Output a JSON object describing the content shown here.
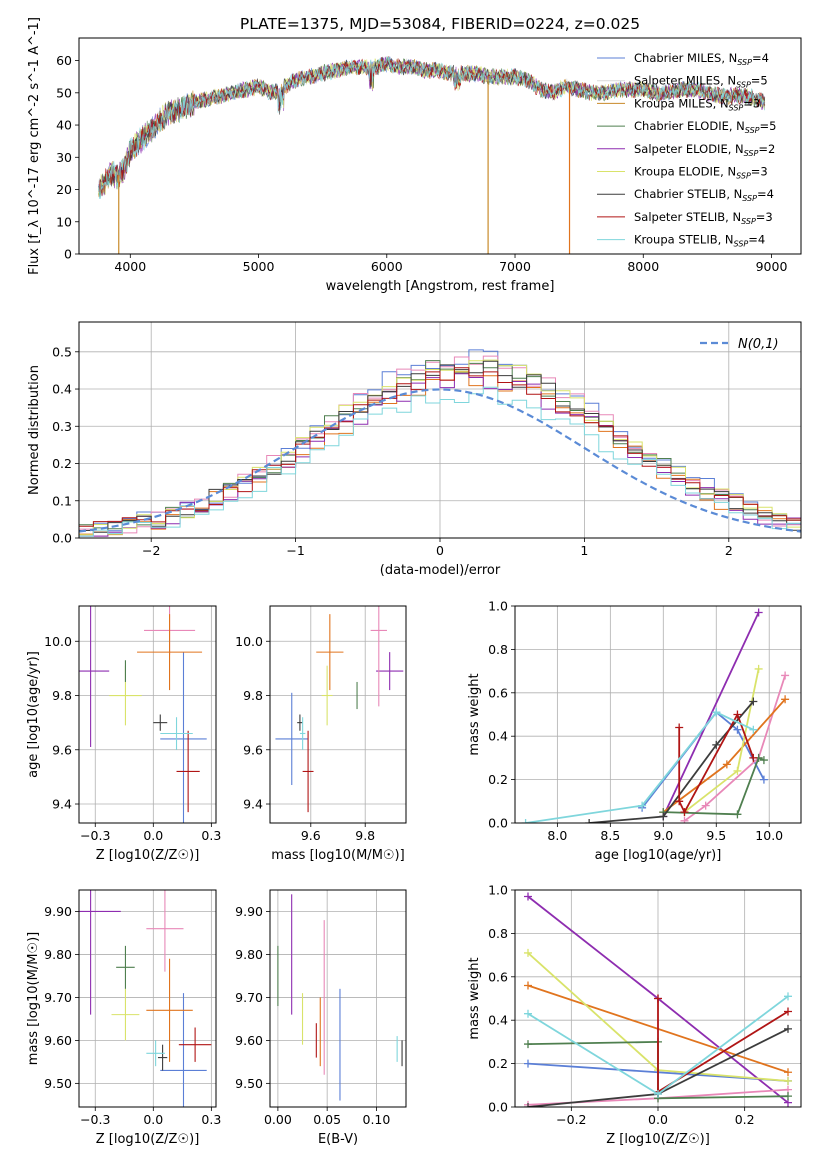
{
  "title": "PLATE=1375, MJD=53084, FIBERID=0224, z=0.025",
  "colors": {
    "chab_miles": "#5b7fd6",
    "salp_miles": "#d9d9d9",
    "krou_miles": "#c88a2a",
    "chab_elodie": "#4f7f4f",
    "salp_elodie": "#8e2db0",
    "krou_elodie": "#d9e36a",
    "chab_stelib": "#3c3c3c",
    "salp_stelib": "#b01515",
    "krou_stelib": "#7fd6dc",
    "orange": "#e0741e",
    "pink": "#e888b8",
    "gaussian": "#5b8bd6"
  },
  "chart_data": [
    {
      "id": "spectrum",
      "type": "line",
      "xlabel": "wavelength [Angstrom, rest frame]",
      "ylabel": "Flux [f_λ 10^-17 erg cm^-2 s^-1 A^-1]",
      "xlim": [
        3600,
        9230
      ],
      "ylim": [
        0,
        67
      ],
      "xticks": [
        4000,
        5000,
        6000,
        7000,
        8000,
        9000
      ],
      "yticks": [
        0,
        10,
        20,
        30,
        40,
        50,
        60
      ],
      "continuum": {
        "x": [
          3750,
          3800,
          3850,
          3900,
          3950,
          4000,
          4100,
          4200,
          4300,
          4400,
          4500,
          4600,
          4700,
          4800,
          4900,
          5000,
          5100,
          5200,
          5300,
          5400,
          5500,
          5600,
          5700,
          5800,
          5900,
          6000,
          6100,
          6200,
          6300,
          6400,
          6500,
          6600,
          6700,
          6800,
          6900,
          7000,
          7100,
          7200,
          7300,
          7400,
          7500,
          7600,
          7700,
          7800,
          7900,
          8000,
          8100,
          8200,
          8300,
          8400,
          8500,
          8600,
          8700,
          8800,
          8900,
          8950
        ],
        "y": [
          20,
          22,
          25,
          24,
          26,
          32,
          36,
          40,
          44,
          45,
          47,
          48,
          49,
          50,
          51,
          52,
          50,
          52,
          54,
          55,
          56,
          57,
          58,
          58,
          58,
          59,
          58,
          58,
          57,
          57,
          56,
          56,
          56,
          55,
          55,
          55,
          54,
          51,
          50,
          52,
          51,
          50,
          50,
          51,
          51,
          51,
          50,
          50,
          51,
          51,
          50,
          49,
          49,
          49,
          48,
          47
        ]
      },
      "legend": [
        {
          "label": "Chabrier MILES, N",
          "sub": "SSP",
          "val": "=4",
          "color": "#5b7fd6"
        },
        {
          "label": "Salpeter MILES, N",
          "sub": "SSP",
          "val": "=5",
          "color": "#d9d9d9"
        },
        {
          "label": "Kroupa MILES, N",
          "sub": "SSP",
          "val": "=3",
          "color": "#c88a2a"
        },
        {
          "label": "Chabrier ELODIE, N",
          "sub": "SSP",
          "val": "=5",
          "color": "#4f7f4f"
        },
        {
          "label": "Salpeter ELODIE, N",
          "sub": "SSP",
          "val": "=2",
          "color": "#8e2db0"
        },
        {
          "label": "Kroupa ELODIE, N",
          "sub": "SSP",
          "val": "=3",
          "color": "#d9e36a"
        },
        {
          "label": "Chabrier STELIB, N",
          "sub": "SSP",
          "val": "=4",
          "color": "#3c3c3c"
        },
        {
          "label": "Salpeter STELIB, N",
          "sub": "SSP",
          "val": "=3",
          "color": "#b01515"
        },
        {
          "label": "Kroupa STELIB, N",
          "sub": "SSP",
          "val": "=4",
          "color": "#7fd6dc"
        }
      ]
    },
    {
      "id": "residuals",
      "type": "line",
      "xlabel": "(data-model)/error",
      "ylabel": "Normed distribution",
      "xlim": [
        -2.5,
        2.5
      ],
      "ylim": [
        0,
        0.58
      ],
      "xticks": [
        -2,
        -1,
        0,
        1,
        2
      ],
      "yticks": [
        0.0,
        0.1,
        0.2,
        0.3,
        0.4,
        0.5
      ],
      "legend": "N(0,1)",
      "bin_width": 0.1,
      "peak_offset": 0.2
    },
    {
      "id": "age_vs_Z",
      "type": "scatter",
      "xlabel": "Z [log10(Z/Z☉)]",
      "ylabel": "age  [log10(age/yr)]",
      "xlim": [
        -0.32,
        0.27
      ],
      "ylim": [
        9.33,
        10.13
      ],
      "xticks": [
        -0.25,
        0.0,
        0.25
      ],
      "yticks": [
        9.4,
        9.6,
        9.8,
        10.0
      ],
      "points": [
        {
          "x": 0.13,
          "y": 9.64,
          "ex": 0.1,
          "ey": 0.32,
          "c": "#5b7fd6"
        },
        {
          "x": -0.27,
          "y": 9.89,
          "ex": 0.08,
          "ey": 0.28,
          "c": "#8e2db0"
        },
        {
          "x": 0.07,
          "y": 10.04,
          "ex": 0.11,
          "ey": 0.09,
          "c": "#e888b8"
        },
        {
          "x": 0.07,
          "y": 9.96,
          "ex": 0.14,
          "ey": 0.14,
          "c": "#e0741e"
        },
        {
          "x": -0.12,
          "y": 9.8,
          "ex": 0.07,
          "ey": 0.11,
          "c": "#d9e36a"
        },
        {
          "x": -0.12,
          "y": 9.89,
          "ex": 0.0,
          "ey": 0.04,
          "c": "#4f7f4f"
        },
        {
          "x": 0.03,
          "y": 9.7,
          "ex": 0.03,
          "ey": 0.03,
          "c": "#3c3c3c"
        },
        {
          "x": 0.15,
          "y": 9.52,
          "ex": 0.05,
          "ey": 0.15,
          "c": "#b01515"
        },
        {
          "x": 0.1,
          "y": 9.66,
          "ex": 0.07,
          "ey": 0.06,
          "c": "#7fd6dc"
        }
      ]
    },
    {
      "id": "age_vs_mass",
      "type": "scatter",
      "xlabel": "mass [log10(M/M☉)]",
      "xlim": [
        9.45,
        9.95
      ],
      "ylim": [
        9.33,
        10.13
      ],
      "xticks": [
        9.6,
        9.8
      ],
      "yticks": [
        9.4,
        9.6,
        9.8,
        10.0
      ],
      "points": [
        {
          "x": 9.53,
          "y": 9.64,
          "ex": 0.06,
          "ey": 0.17,
          "c": "#5b7fd6"
        },
        {
          "x": 9.89,
          "y": 9.89,
          "ex": 0.05,
          "ey": 0.07,
          "c": "#8e2db0"
        },
        {
          "x": 9.85,
          "y": 10.04,
          "ex": 0.03,
          "ey": 0.28,
          "c": "#e888b8"
        },
        {
          "x": 9.67,
          "y": 9.96,
          "ex": 0.05,
          "ey": 0.14,
          "c": "#e0741e"
        },
        {
          "x": 9.66,
          "y": 9.8,
          "ex": 0.02,
          "ey": 0.11,
          "c": "#d9e36a"
        },
        {
          "x": 9.77,
          "y": 9.8,
          "ex": 0.0,
          "ey": 0.05,
          "c": "#4f7f4f"
        },
        {
          "x": 9.56,
          "y": 9.7,
          "ex": 0.01,
          "ey": 0.03,
          "c": "#3c3c3c"
        },
        {
          "x": 9.59,
          "y": 9.52,
          "ex": 0.02,
          "ey": 0.15,
          "c": "#b01515"
        },
        {
          "x": 9.57,
          "y": 9.66,
          "ex": 0.01,
          "ey": 0.06,
          "c": "#7fd6dc"
        }
      ]
    },
    {
      "id": "mw_vs_age",
      "type": "line",
      "xlabel": "age  [log10(age/yr)]",
      "ylabel": "mass weight",
      "xlim": [
        7.6,
        10.3
      ],
      "ylim": [
        0,
        1.0
      ],
      "xticks": [
        8.0,
        8.5,
        9.0,
        9.5,
        10.0
      ],
      "yticks": [
        0.0,
        0.2,
        0.4,
        0.6,
        0.8,
        1.0
      ],
      "series": [
        {
          "c": "#5b7fd6",
          "x": [
            8.8,
            9.5,
            9.7,
            9.95
          ],
          "y": [
            0.07,
            0.51,
            0.43,
            0.2
          ]
        },
        {
          "c": "#8e2db0",
          "x": [
            9.0,
            9.9
          ],
          "y": [
            0.03,
            0.97
          ]
        },
        {
          "c": "#e888b8",
          "x": [
            9.2,
            9.4,
            9.9,
            10.15
          ],
          "y": [
            0.01,
            0.08,
            0.3,
            0.68
          ]
        },
        {
          "c": "#e0741e",
          "x": [
            9.0,
            9.6,
            10.15
          ],
          "y": [
            0.05,
            0.27,
            0.57
          ]
        },
        {
          "c": "#d9e36a",
          "x": [
            9.2,
            9.7,
            9.9
          ],
          "y": [
            0.05,
            0.24,
            0.71
          ]
        },
        {
          "c": "#4f7f4f",
          "x": [
            9.0,
            9.7,
            9.9,
            9.95
          ],
          "y": [
            0.05,
            0.04,
            0.3,
            0.29
          ]
        },
        {
          "c": "#3c3c3c",
          "x": [
            8.3,
            9.0,
            9.5,
            9.85
          ],
          "y": [
            0.0,
            0.03,
            0.36,
            0.56
          ]
        },
        {
          "c": "#b01515",
          "x": [
            9.15,
            9.15,
            9.2,
            9.7,
            9.85
          ],
          "y": [
            0.44,
            0.1,
            0.05,
            0.5,
            0.3
          ]
        },
        {
          "c": "#7fd6dc",
          "x": [
            7.7,
            8.8,
            9.5,
            9.85
          ],
          "y": [
            0.0,
            0.08,
            0.51,
            0.43
          ]
        }
      ]
    },
    {
      "id": "mass_vs_Z",
      "type": "scatter",
      "xlabel": "Z [log10(Z/Z☉)]",
      "ylabel": "mass [log10(M/M☉)]",
      "xlim": [
        -0.32,
        0.27
      ],
      "ylim": [
        9.445,
        9.95
      ],
      "xticks": [
        -0.25,
        0.0,
        0.25
      ],
      "yticks": [
        9.5,
        9.6,
        9.7,
        9.8,
        9.9
      ],
      "points": [
        {
          "x": 0.13,
          "y": 9.53,
          "ex": 0.1,
          "ey": 0.18,
          "c": "#5b7fd6"
        },
        {
          "x": -0.27,
          "y": 9.9,
          "ex": 0.13,
          "ey": 0.24,
          "c": "#8e2db0"
        },
        {
          "x": 0.05,
          "y": 9.86,
          "ex": 0.08,
          "ey": 0.1,
          "c": "#e888b8"
        },
        {
          "x": 0.07,
          "y": 9.67,
          "ex": 0.1,
          "ey": 0.12,
          "c": "#e0741e"
        },
        {
          "x": -0.12,
          "y": 9.66,
          "ex": 0.06,
          "ey": 0.06,
          "c": "#d9e36a"
        },
        {
          "x": -0.12,
          "y": 9.77,
          "ex": 0.04,
          "ey": 0.05,
          "c": "#4f7f4f"
        },
        {
          "x": 0.04,
          "y": 9.56,
          "ex": 0.02,
          "ey": 0.03,
          "c": "#3c3c3c"
        },
        {
          "x": 0.18,
          "y": 9.59,
          "ex": 0.07,
          "ey": 0.04,
          "c": "#b01515"
        },
        {
          "x": 0.01,
          "y": 9.57,
          "ex": 0.04,
          "ey": 0.03,
          "c": "#7fd6dc"
        }
      ]
    },
    {
      "id": "mass_vs_ebv",
      "type": "scatter",
      "xlabel": "E(B-V)",
      "xlim": [
        -0.008,
        0.13
      ],
      "ylim": [
        9.445,
        9.95
      ],
      "xticks": [
        0.0,
        0.05,
        0.1
      ],
      "yticks": [
        9.5,
        9.6,
        9.7,
        9.8,
        9.9
      ],
      "points": [
        {
          "x": 0.063,
          "y": 9.59,
          "ex": 0.0,
          "ey": 0.13,
          "c": "#5b7fd6"
        },
        {
          "x": 0.014,
          "y": 9.8,
          "ex": 0.0,
          "ey": 0.14,
          "c": "#8e2db0"
        },
        {
          "x": 0.047,
          "y": 9.7,
          "ex": 0.0,
          "ey": 0.18,
          "c": "#e888b8"
        },
        {
          "x": 0.043,
          "y": 9.62,
          "ex": 0.0,
          "ey": 0.08,
          "c": "#e0741e"
        },
        {
          "x": 0.025,
          "y": 9.65,
          "ex": 0.0,
          "ey": 0.06,
          "c": "#d9e36a"
        },
        {
          "x": 0.0,
          "y": 9.75,
          "ex": 0.0,
          "ey": 0.07,
          "c": "#4f7f4f"
        },
        {
          "x": 0.126,
          "y": 9.57,
          "ex": 0.0,
          "ey": 0.03,
          "c": "#3c3c3c"
        },
        {
          "x": 0.039,
          "y": 9.6,
          "ex": 0.0,
          "ey": 0.04,
          "c": "#b01515"
        },
        {
          "x": 0.121,
          "y": 9.58,
          "ex": 0.0,
          "ey": 0.03,
          "c": "#7fd6dc"
        }
      ]
    },
    {
      "id": "mw_vs_Z",
      "type": "line",
      "xlabel": "Z [log10(Z/Z☉)]",
      "ylabel": "mass weight",
      "xlim": [
        -0.33,
        0.33
      ],
      "ylim": [
        0,
        1.0
      ],
      "xticks": [
        -0.2,
        0.0,
        0.2
      ],
      "yticks": [
        0.0,
        0.2,
        0.4,
        0.6,
        0.8,
        1.0
      ],
      "series": [
        {
          "c": "#5b7fd6",
          "x": [
            -0.3,
            0.3
          ],
          "y": [
            0.2,
            0.12
          ]
        },
        {
          "c": "#8e2db0",
          "x": [
            -0.3,
            0.0,
            0.3
          ],
          "y": [
            0.97,
            0.5,
            0.02
          ]
        },
        {
          "c": "#e888b8",
          "x": [
            -0.3,
            0.0,
            0.3
          ],
          "y": [
            0.01,
            0.04,
            0.08
          ]
        },
        {
          "c": "#e0741e",
          "x": [
            -0.3,
            0.3
          ],
          "y": [
            0.56,
            0.16
          ]
        },
        {
          "c": "#d9e36a",
          "x": [
            -0.3,
            0.0,
            0.3
          ],
          "y": [
            0.71,
            0.17,
            0.12
          ]
        },
        {
          "c": "#4f7f4f",
          "x": [
            -0.3,
            0.0,
            0.0,
            0.3
          ],
          "y": [
            0.29,
            0.3,
            0.04,
            0.05
          ]
        },
        {
          "c": "#3c3c3c",
          "x": [
            -0.3,
            0.0,
            0.3
          ],
          "y": [
            0.0,
            0.06,
            0.36
          ]
        },
        {
          "c": "#b01515",
          "x": [
            0.0,
            0.0,
            0.3
          ],
          "y": [
            0.5,
            0.07,
            0.44
          ]
        },
        {
          "c": "#7fd6dc",
          "x": [
            -0.3,
            0.0,
            0.3
          ],
          "y": [
            0.43,
            0.06,
            0.51
          ]
        }
      ]
    }
  ]
}
